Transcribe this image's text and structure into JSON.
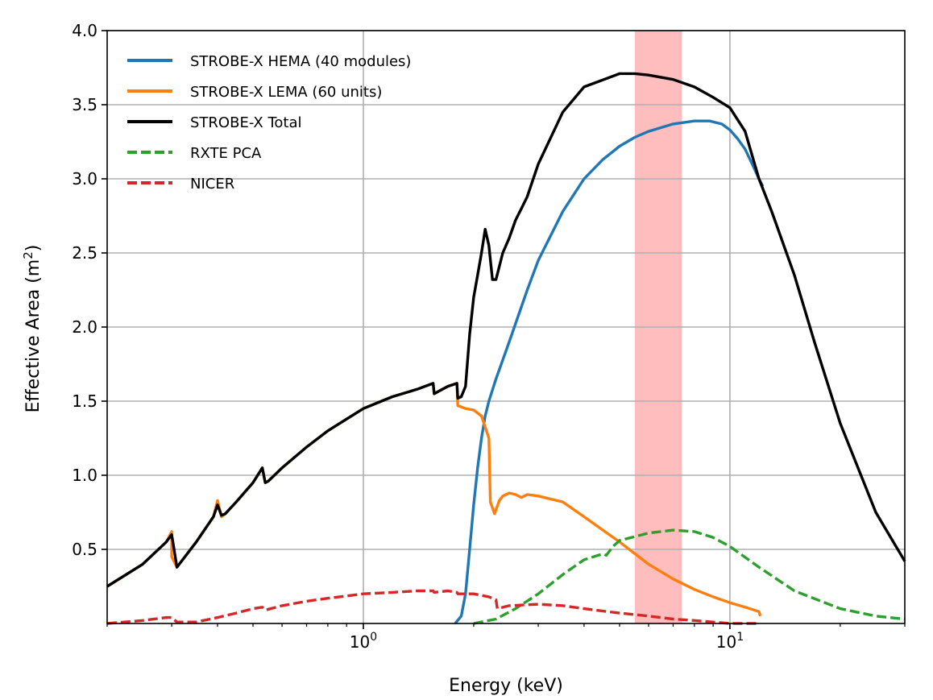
{
  "chart_data": {
    "type": "line",
    "title": "",
    "xlabel": "Energy (keV)",
    "ylabel_main": "Effective Area (m",
    "ylabel_sup": "2",
    "ylabel_end": ")",
    "xscale": "log",
    "xlim": [
      0.2,
      30
    ],
    "ylim": [
      0.0,
      4.0
    ],
    "grid": true,
    "legend_position": "upper-left",
    "x_ticks": [
      {
        "value": 1,
        "base": "10",
        "exp": "0"
      },
      {
        "value": 10,
        "base": "10",
        "exp": "1"
      }
    ],
    "y_ticks": [
      "0.5",
      "1.0",
      "1.5",
      "2.0",
      "2.5",
      "3.0",
      "3.5",
      "4.0"
    ],
    "shaded_band": {
      "x_range": [
        5.5,
        7.4
      ],
      "color": "#ff9999"
    },
    "series": [
      {
        "name": "STROBE-X HEMA (40 modules)",
        "color": "#1f77b4",
        "style": "solid",
        "x": [
          1.78,
          1.85,
          1.9,
          1.95,
          2.0,
          2.05,
          2.1,
          2.15,
          2.2,
          2.3,
          2.5,
          2.8,
          3.0,
          3.5,
          4.0,
          4.5,
          5.0,
          5.5,
          6.0,
          7.0,
          8.0,
          8.8,
          9.5,
          10.0,
          10.5,
          11.0,
          11.5,
          12.0,
          12.3
        ],
        "values": [
          0.0,
          0.05,
          0.2,
          0.5,
          0.8,
          1.05,
          1.25,
          1.4,
          1.5,
          1.65,
          1.9,
          2.25,
          2.45,
          2.78,
          3.0,
          3.13,
          3.22,
          3.28,
          3.32,
          3.37,
          3.39,
          3.39,
          3.37,
          3.33,
          3.27,
          3.2,
          3.1,
          3.0,
          2.95
        ]
      },
      {
        "name": "STROBE-X LEMA (60 units)",
        "color": "#ff7f0e",
        "style": "solid",
        "x": [
          0.2,
          0.25,
          0.29,
          0.3,
          0.3,
          0.31,
          0.35,
          0.39,
          0.4,
          0.41,
          0.42,
          0.45,
          0.5,
          0.53,
          0.54,
          0.55,
          0.6,
          0.7,
          0.8,
          1.0,
          1.2,
          1.4,
          1.55,
          1.56,
          1.7,
          1.8,
          1.81,
          1.9,
          2.0,
          2.1,
          2.2,
          2.22,
          2.28,
          2.35,
          2.4,
          2.5,
          2.6,
          2.7,
          2.8,
          3.0,
          3.5,
          4.0,
          5.0,
          6.0,
          7.0,
          8.0,
          9.0,
          10.0,
          11.0,
          12.0,
          12.1
        ],
        "values": [
          0.25,
          0.4,
          0.55,
          0.62,
          0.45,
          0.38,
          0.55,
          0.72,
          0.83,
          0.72,
          0.74,
          0.82,
          0.95,
          1.05,
          0.95,
          0.96,
          1.05,
          1.19,
          1.3,
          1.45,
          1.53,
          1.58,
          1.62,
          1.55,
          1.6,
          1.62,
          1.47,
          1.45,
          1.44,
          1.4,
          1.25,
          0.82,
          0.74,
          0.83,
          0.86,
          0.88,
          0.87,
          0.85,
          0.87,
          0.86,
          0.82,
          0.72,
          0.55,
          0.4,
          0.3,
          0.23,
          0.18,
          0.14,
          0.11,
          0.08,
          0.05
        ]
      },
      {
        "name": "STROBE-X Total",
        "color": "#000000",
        "style": "solid",
        "x": [
          0.2,
          0.25,
          0.29,
          0.3,
          0.31,
          0.35,
          0.39,
          0.4,
          0.41,
          0.42,
          0.45,
          0.5,
          0.53,
          0.54,
          0.55,
          0.6,
          0.7,
          0.8,
          1.0,
          1.2,
          1.4,
          1.55,
          1.56,
          1.7,
          1.8,
          1.81,
          1.85,
          1.9,
          1.95,
          2.0,
          2.05,
          2.1,
          2.15,
          2.2,
          2.25,
          2.3,
          2.4,
          2.5,
          2.6,
          2.7,
          2.8,
          3.0,
          3.5,
          4.0,
          5.0,
          5.5,
          6.0,
          7.0,
          8.0,
          9.0,
          10.0,
          11.0,
          12.0,
          13.0,
          15.0,
          17.0,
          20.0,
          25.0,
          30.0
        ],
        "values": [
          0.25,
          0.4,
          0.55,
          0.6,
          0.38,
          0.55,
          0.72,
          0.8,
          0.73,
          0.74,
          0.82,
          0.95,
          1.05,
          0.95,
          0.96,
          1.05,
          1.19,
          1.3,
          1.45,
          1.53,
          1.58,
          1.62,
          1.55,
          1.6,
          1.62,
          1.52,
          1.53,
          1.6,
          1.95,
          2.2,
          2.35,
          2.5,
          2.66,
          2.55,
          2.32,
          2.32,
          2.5,
          2.6,
          2.72,
          2.8,
          2.88,
          3.1,
          3.45,
          3.62,
          3.71,
          3.71,
          3.7,
          3.67,
          3.62,
          3.55,
          3.48,
          3.32,
          3.0,
          2.78,
          2.35,
          1.9,
          1.35,
          0.75,
          0.42
        ]
      },
      {
        "name": "RXTE PCA",
        "color": "#2ca02c",
        "style": "dashed",
        "x": [
          2.0,
          2.3,
          2.6,
          3.0,
          3.5,
          4.0,
          4.5,
          4.6,
          4.8,
          5.0,
          6.0,
          7.0,
          8.0,
          9.0,
          10.0,
          12.0,
          15.0,
          20.0,
          25.0,
          30.0
        ],
        "values": [
          0.0,
          0.03,
          0.1,
          0.2,
          0.33,
          0.43,
          0.47,
          0.46,
          0.52,
          0.56,
          0.61,
          0.63,
          0.62,
          0.58,
          0.52,
          0.38,
          0.22,
          0.1,
          0.05,
          0.03
        ]
      },
      {
        "name": "NICER",
        "color": "#d62728",
        "style": "dashed",
        "x": [
          0.2,
          0.25,
          0.29,
          0.3,
          0.31,
          0.35,
          0.4,
          0.45,
          0.5,
          0.53,
          0.54,
          0.6,
          0.7,
          0.8,
          1.0,
          1.2,
          1.4,
          1.55,
          1.56,
          1.7,
          1.8,
          1.81,
          1.9,
          2.0,
          2.2,
          2.3,
          2.32,
          2.5,
          3.0,
          3.5,
          4.0,
          5.0,
          6.0,
          7.0,
          8.0,
          10.0,
          12.0
        ],
        "values": [
          0.0,
          0.02,
          0.04,
          0.04,
          0.01,
          0.01,
          0.04,
          0.07,
          0.1,
          0.11,
          0.09,
          0.12,
          0.15,
          0.17,
          0.2,
          0.21,
          0.22,
          0.22,
          0.21,
          0.22,
          0.21,
          0.2,
          0.2,
          0.2,
          0.18,
          0.16,
          0.1,
          0.12,
          0.13,
          0.12,
          0.1,
          0.07,
          0.05,
          0.03,
          0.02,
          0.0,
          0.0
        ]
      }
    ]
  }
}
